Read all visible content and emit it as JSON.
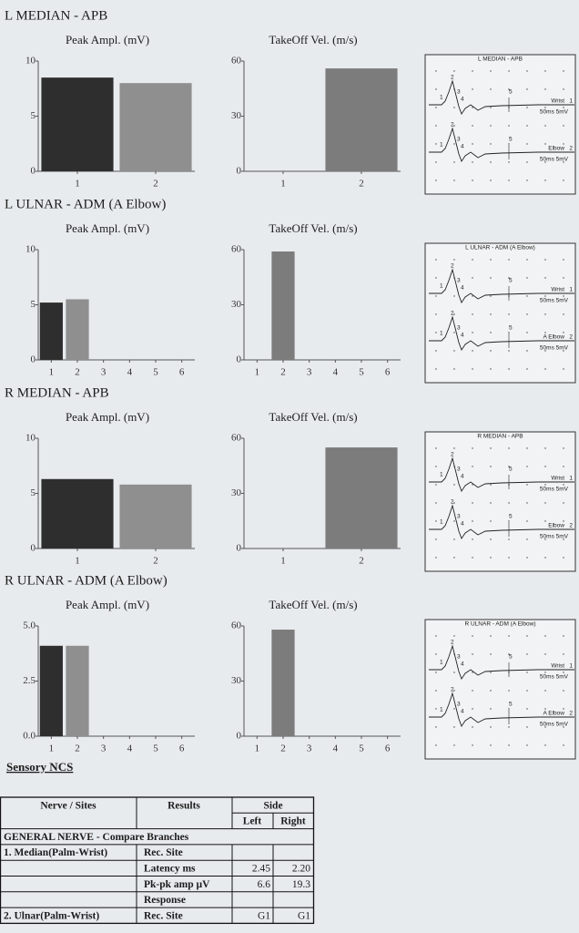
{
  "sections": [
    {
      "title": "L MEDIAN - APB",
      "charts": [
        {
          "type": "bar",
          "title": "Peak Ampl. (mV)",
          "categories": [
            "1",
            "2"
          ],
          "values": [
            8.5,
            8.0
          ],
          "colors": [
            "#2e2e2e",
            "#8f8f8f"
          ],
          "ylim": [
            0,
            10
          ],
          "yticks": [
            0,
            5,
            10
          ]
        },
        {
          "type": "bar",
          "title": "TakeOff Vel. (m/s)",
          "categories": [
            "1",
            "2"
          ],
          "values": [
            null,
            56
          ],
          "colors": [
            "#7c7c7c"
          ],
          "ylim": [
            0,
            60
          ],
          "yticks": [
            0,
            30,
            60
          ]
        }
      ],
      "waveform": {
        "title": "L MEDIAN - APB",
        "traces": [
          {
            "site": "Wrist",
            "number": "1",
            "scale": "50ms 5mV",
            "markers": [
              "1",
              "2",
              "3",
              "4",
              "5"
            ]
          },
          {
            "site": "Elbow",
            "number": "2",
            "scale": "50ms 5mV",
            "markers": [
              "1",
              "2",
              "3",
              "4",
              "5"
            ]
          }
        ]
      }
    },
    {
      "title": "L ULNAR - ADM (A Elbow)",
      "charts": [
        {
          "type": "bar",
          "title": "Peak Ampl. (mV)",
          "categories": [
            "1",
            "2",
            "3",
            "4",
            "5",
            "6"
          ],
          "values": [
            5.2,
            5.5,
            null,
            null,
            null,
            null
          ],
          "colors": [
            "#2e2e2e",
            "#8f8f8f"
          ],
          "ylim": [
            0,
            10
          ],
          "yticks": [
            0,
            5,
            10
          ]
        },
        {
          "type": "bar",
          "title": "TakeOff Vel. (m/s)",
          "categories": [
            "1",
            "2",
            "3",
            "4",
            "5",
            "6"
          ],
          "values": [
            null,
            59,
            null,
            null,
            null,
            null
          ],
          "colors": [
            "#7c7c7c"
          ],
          "ylim": [
            0,
            60
          ],
          "yticks": [
            0,
            30,
            60
          ]
        }
      ],
      "waveform": {
        "title": "L ULNAR - ADM (A Elbow)",
        "traces": [
          {
            "site": "Wrist",
            "number": "1",
            "scale": "50ms 5mV",
            "markers": [
              "1",
              "2",
              "3",
              "4",
              "5"
            ]
          },
          {
            "site": "A Elbow",
            "number": "2",
            "scale": "50ms 5mV",
            "markers": [
              "1",
              "2",
              "3",
              "4",
              "5"
            ]
          }
        ]
      }
    },
    {
      "title": "R MEDIAN - APB",
      "charts": [
        {
          "type": "bar",
          "title": "Peak Ampl. (mV)",
          "categories": [
            "1",
            "2"
          ],
          "values": [
            6.3,
            5.8
          ],
          "colors": [
            "#2e2e2e",
            "#8f8f8f"
          ],
          "ylim": [
            0,
            10
          ],
          "yticks": [
            0,
            5,
            10
          ]
        },
        {
          "type": "bar",
          "title": "TakeOff Vel. (m/s)",
          "categories": [
            "1",
            "2"
          ],
          "values": [
            null,
            55
          ],
          "colors": [
            "#7c7c7c"
          ],
          "ylim": [
            0,
            60
          ],
          "yticks": [
            0,
            30,
            60
          ]
        }
      ],
      "waveform": {
        "title": "R MEDIAN - APB",
        "traces": [
          {
            "site": "Wrist",
            "number": "1",
            "scale": "50ms 5mV",
            "markers": [
              "1",
              "2",
              "3",
              "4",
              "5"
            ]
          },
          {
            "site": "Elbow",
            "number": "2",
            "scale": "50ms 5mV",
            "markers": [
              "1",
              "2",
              "3",
              "4",
              "5"
            ]
          }
        ]
      }
    },
    {
      "title": "R ULNAR - ADM (A Elbow)",
      "charts": [
        {
          "type": "bar",
          "title": "Peak Ampl. (mV)",
          "categories": [
            "1",
            "2",
            "3",
            "4",
            "5",
            "6"
          ],
          "values": [
            4.1,
            4.1,
            null,
            null,
            null,
            null
          ],
          "colors": [
            "#2e2e2e",
            "#8f8f8f"
          ],
          "ylim": [
            0,
            5
          ],
          "yticks": [
            {
              "value": 0,
              "label": "0.0"
            },
            {
              "value": 2.5,
              "label": "2.5"
            },
            {
              "value": 5,
              "label": "5.0"
            }
          ]
        },
        {
          "type": "bar",
          "title": "TakeOff Vel. (m/s)",
          "categories": [
            "1",
            "2",
            "3",
            "4",
            "5",
            "6"
          ],
          "values": [
            null,
            58,
            null,
            null,
            null,
            null
          ],
          "colors": [
            "#7c7c7c"
          ],
          "ylim": [
            0,
            60
          ],
          "yticks": [
            0,
            30,
            60
          ]
        }
      ],
      "waveform": {
        "title": "R ULNAR - ADM (A Elbow)",
        "traces": [
          {
            "site": "Wrist",
            "number": "1",
            "scale": "50ms 5mV",
            "markers": [
              "1",
              "2",
              "3",
              "4",
              "5"
            ]
          },
          {
            "site": "A Elbow",
            "number": "2",
            "scale": "50ms 5mV",
            "markers": [
              "1",
              "2",
              "3",
              "4",
              "5"
            ]
          }
        ]
      }
    }
  ],
  "sensory": {
    "title": "Sensory NCS",
    "table": {
      "header": [
        "Nerve / Sites",
        "Results",
        "Side"
      ],
      "subheader": [
        "Left",
        "Right"
      ],
      "rows": [
        {
          "nerve": "GENERAL NERVE - Compare Branches"
        },
        {
          "nerve": "1. Median(Palm-Wrist)",
          "result": "Rec. Site"
        },
        {
          "result": "Latency ms",
          "left": "2.45",
          "right": "2.20"
        },
        {
          "result": "Pk-pk amp µV",
          "left": "6.6",
          "right": "19.3"
        },
        {
          "result": "Response"
        },
        {
          "nerve": "2. Ulnar(Palm-Wrist)",
          "result": "Rec. Site",
          "left": "G1",
          "right": "G1"
        }
      ]
    }
  }
}
